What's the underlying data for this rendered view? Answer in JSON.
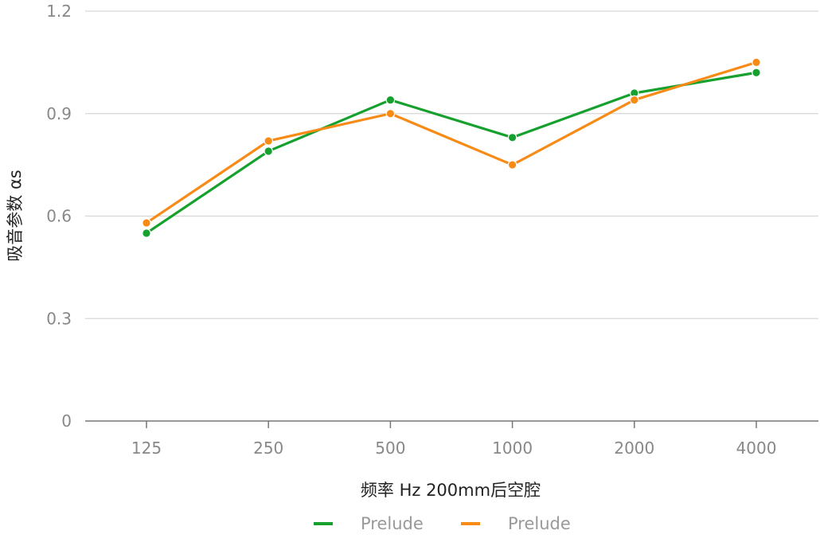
{
  "chart_data": {
    "type": "line",
    "categories": [
      "125",
      "250",
      "500",
      "1000",
      "2000",
      "4000"
    ],
    "series": [
      {
        "name": "Prelude",
        "color": "#16a02e",
        "values": [
          0.55,
          0.79,
          0.94,
          0.83,
          0.96,
          1.02
        ]
      },
      {
        "name": "Prelude",
        "color": "#f78b16",
        "values": [
          0.58,
          0.82,
          0.9,
          0.75,
          0.94,
          1.05
        ]
      }
    ],
    "ylabel": "吸音参数 αs",
    "xlabel": "频率 Hz  200mm后空腔",
    "ylim": [
      0,
      1.2
    ],
    "yticks": [
      "0",
      "0.3",
      "0.6",
      "0.9",
      "1.2"
    ],
    "ytick_values": [
      0,
      0.3,
      0.6,
      0.9,
      1.2
    ],
    "grid": true,
    "legend_position": "bottom-center"
  }
}
